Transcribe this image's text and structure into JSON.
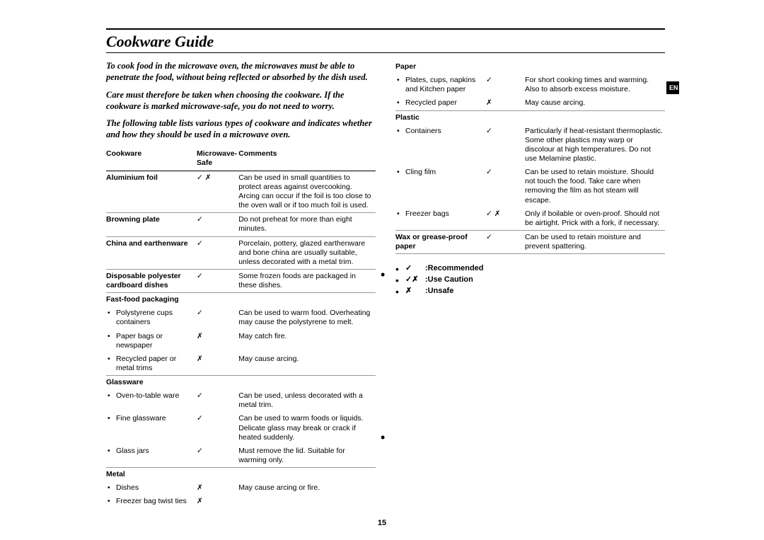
{
  "title": "Cookware Guide",
  "lang_tab": "EN",
  "page_number": "15",
  "intro": {
    "p1": "To cook food in the microwave oven, the microwaves must be able to penetrate the food, without being reflected or absorbed by the dish used.",
    "p2": "Care must therefore be taken when choosing the cookware. If the cookware is marked microwave-safe, you do not need to worry.",
    "p3": "The following table lists various types of cookware and indicates whether and how they should be used in a microwave oven."
  },
  "headers": {
    "c1": "Cookware",
    "c2": "Microwave-Safe",
    "c3": "Comments"
  },
  "symbols": {
    "check": "✓",
    "cross": "✗",
    "caution": "✓ ✗"
  },
  "left_rows": [
    {
      "type": "row",
      "div": true,
      "bold": true,
      "c1": "Aluminium foil",
      "c2": "✓ ✗",
      "c3": "Can be used in small quantities to protect areas against overcooking. Arcing can occur if the foil is too close to the oven wall or if too much foil is used."
    },
    {
      "type": "row",
      "div": true,
      "bold": true,
      "c1": "Browning plate",
      "c2": "✓",
      "c3": "Do not preheat for more than eight minutes."
    },
    {
      "type": "row",
      "div": true,
      "bold": true,
      "c1": "China and earthenware",
      "c2": "✓",
      "c3": "Porcelain, pottery, glazed earthenware and bone china are usually suitable, unless decorated with a metal trim."
    },
    {
      "type": "row",
      "div": true,
      "bold": true,
      "c1": "Disposable polyester cardboard dishes",
      "c2": "✓",
      "c3": "Some frozen foods are packaged in these dishes."
    },
    {
      "type": "cat",
      "c1": "Fast-food packaging"
    },
    {
      "type": "sub",
      "c1": "Polystyrene cups containers",
      "c2": "✓",
      "c3": "Can be used to warm food. Overheating may cause the polystyrene to melt."
    },
    {
      "type": "sub",
      "c1": "Paper bags or newspaper",
      "c2": "✗",
      "c3": "May catch fire."
    },
    {
      "type": "sub",
      "div": true,
      "c1": "Recycled paper or metal trims",
      "c2": "✗",
      "c3": "May cause arcing."
    },
    {
      "type": "cat",
      "c1": "Glassware"
    },
    {
      "type": "sub",
      "c1": "Oven-to-table ware",
      "c2": "✓",
      "c3": "Can be used, unless decorated with a metal trim."
    },
    {
      "type": "sub",
      "c1": "Fine glassware",
      "c2": "✓",
      "c3": "Can be used to warm foods or liquids. Delicate glass may break or crack if heated suddenly."
    },
    {
      "type": "sub",
      "div": true,
      "c1": "Glass jars",
      "c2": "✓",
      "c3": "Must remove the lid. Suitable for warming only."
    },
    {
      "type": "cat",
      "c1": "Metal"
    },
    {
      "type": "sub",
      "c1": "Dishes",
      "c2": "✗",
      "c3": "May cause arcing or fire."
    },
    {
      "type": "sub",
      "c1": "Freezer bag twist ties",
      "c2": "✗",
      "c3": ""
    }
  ],
  "right_rows": [
    {
      "type": "cat",
      "c1": "Paper"
    },
    {
      "type": "sub",
      "c1": "Plates, cups, napkins and Kitchen paper",
      "c2": "✓",
      "c3": "For short cooking times and warming. Also to absorb excess moisture."
    },
    {
      "type": "sub",
      "div": true,
      "c1": "Recycled paper",
      "c2": "✗",
      "c3": "May cause arcing."
    },
    {
      "type": "cat",
      "c1": "Plastic"
    },
    {
      "type": "sub",
      "c1": "Containers",
      "c2": "✓",
      "c3": "Particularly if heat-resistant thermoplastic. Some other plastics may warp or discolour at high temperatures. Do not use Melamine plastic."
    },
    {
      "type": "sub",
      "c1": "Cling film",
      "c2": "✓",
      "c3": "Can be used to retain moisture. Should not touch the food. Take care when removing the film as hot steam will escape."
    },
    {
      "type": "sub",
      "div": true,
      "c1": "Freezer bags",
      "c2": "✓ ✗",
      "c3": "Only if boilable or oven-proof. Should not be airtight. Prick with a fork, if necessary."
    },
    {
      "type": "row",
      "div": true,
      "bold": true,
      "c1": "Wax or grease-proof paper",
      "c2": "✓",
      "c3": "Can be used to retain moisture and prevent spattering."
    }
  ],
  "legend": [
    {
      "sym": "✓",
      "txt": ":Recommended"
    },
    {
      "sym": "✓✗",
      "txt": ":Use Caution"
    },
    {
      "sym": "✗",
      "txt": ":Unsafe"
    }
  ]
}
